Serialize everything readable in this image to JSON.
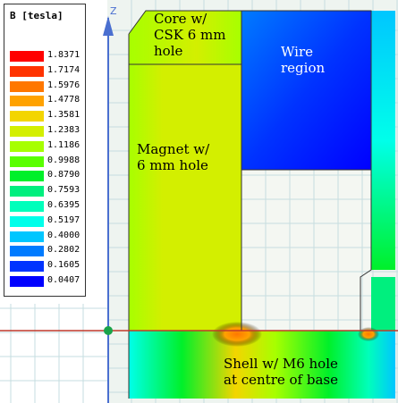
{
  "legend": {
    "title": "B [tesla]",
    "entries": [
      {
        "value": "1.8371",
        "color": "#ff0000"
      },
      {
        "value": "1.7174",
        "color": "#ff3300"
      },
      {
        "value": "1.5976",
        "color": "#ff7700"
      },
      {
        "value": "1.4778",
        "color": "#ffa200"
      },
      {
        "value": "1.3581",
        "color": "#f3d500"
      },
      {
        "value": "1.2383",
        "color": "#d3ef00"
      },
      {
        "value": "1.1186",
        "color": "#a7ff00"
      },
      {
        "value": "0.9988",
        "color": "#59ff00"
      },
      {
        "value": "0.8790",
        "color": "#00f02a"
      },
      {
        "value": "0.7593",
        "color": "#00ef7e"
      },
      {
        "value": "0.6395",
        "color": "#00ffbb"
      },
      {
        "value": "0.5197",
        "color": "#00ffea"
      },
      {
        "value": "0.4000",
        "color": "#00c6ff"
      },
      {
        "value": "0.2802",
        "color": "#007bff"
      },
      {
        "value": "0.1605",
        "color": "#0033ff"
      },
      {
        "value": "0.0407",
        "color": "#0000ff"
      }
    ]
  },
  "labels": {
    "core": "Core w/\nCSK 6 mm\nhole",
    "wire": "Wire\nregion",
    "magnet": "Magnet w/\n6 mm hole",
    "shell": "Shell w/ M6 hole\nat centre of base",
    "axis_z": "Z"
  },
  "colors": {
    "axis": "#4a6fd0",
    "grid": "#c6dde0",
    "field_bg": "#eef4f0",
    "region_outline": "#333333"
  }
}
